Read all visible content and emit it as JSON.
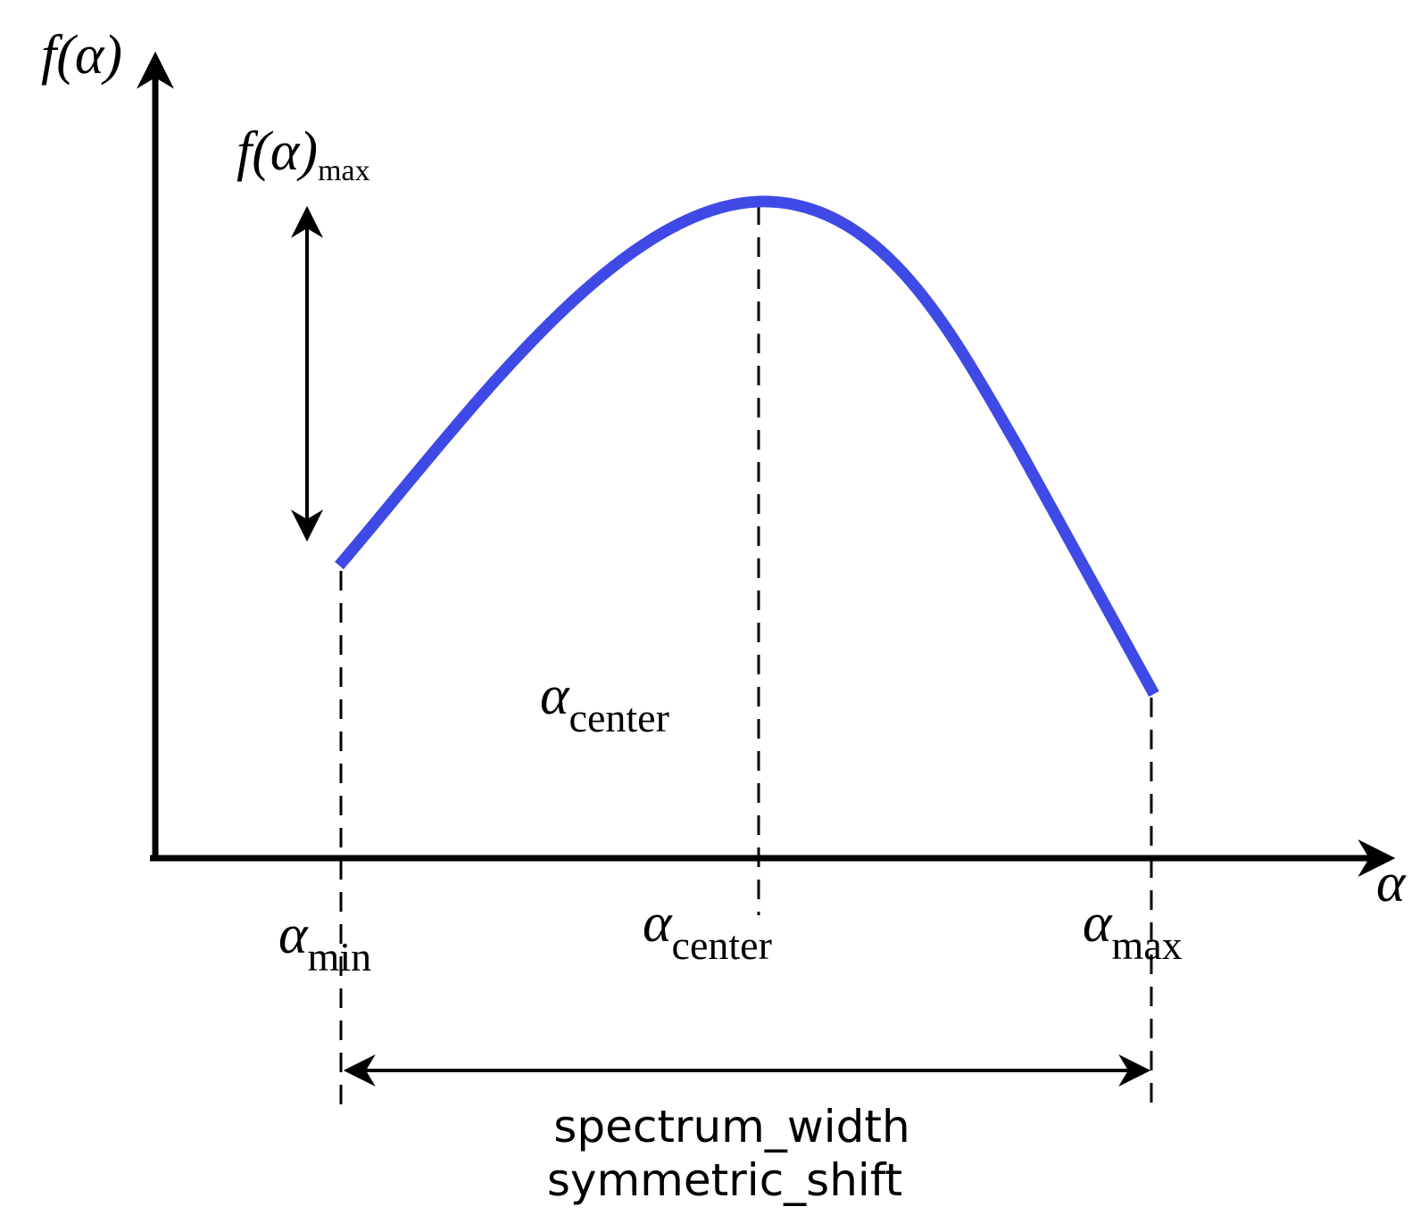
{
  "y_axis_label": "f(α)",
  "x_axis_label": "α",
  "peak_label": {
    "symbol": "f(α)",
    "subscript": "max"
  },
  "center_label_upper": {
    "symbol": "α",
    "subscript": "center"
  },
  "min_label": {
    "symbol": "α",
    "subscript": "min"
  },
  "center_label_lower": {
    "symbol": "α",
    "subscript": "center"
  },
  "max_label": {
    "symbol": "α",
    "subscript": "max"
  },
  "width_labels": [
    "spectrum_width",
    "symmetric_shift"
  ]
}
